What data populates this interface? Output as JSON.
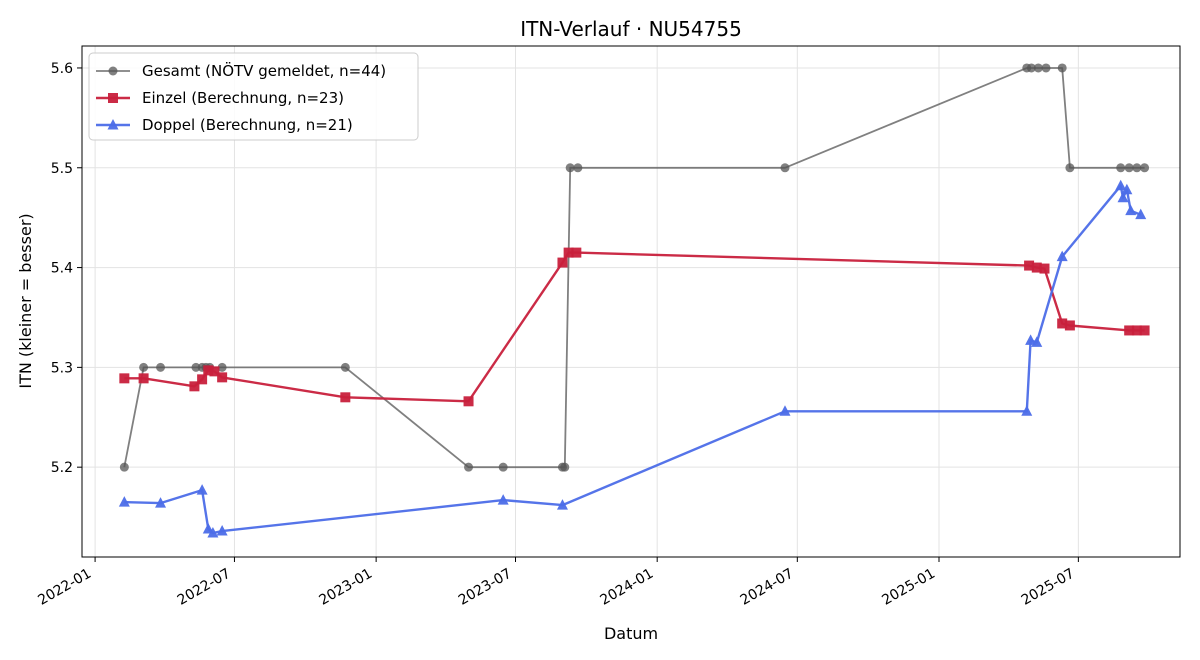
{
  "chart_data": {
    "type": "line",
    "title": "ITN-Verlauf · NU54755",
    "xlabel": "Datum",
    "ylabel": "ITN  (kleiner = besser)",
    "x_axis_type": "date",
    "xlim": [
      "2021-12-15",
      "2025-11-10"
    ],
    "ylim": [
      5.11,
      5.622
    ],
    "x_ticks": [
      "2022-01-01",
      "2022-07-01",
      "2023-01-01",
      "2023-07-01",
      "2024-01-01",
      "2024-07-01",
      "2025-01-01",
      "2025-07-01"
    ],
    "x_tick_labels": [
      "2022-01",
      "2022-07",
      "2023-01",
      "2023-07",
      "2024-01",
      "2024-07",
      "2025-01",
      "2025-07"
    ],
    "y_ticks": [
      5.2,
      5.3,
      5.4,
      5.5,
      5.6
    ],
    "y_tick_labels": [
      "5.2",
      "5.3",
      "5.4",
      "5.5",
      "5.6"
    ],
    "grid": true,
    "legend_position": "top-left",
    "series": [
      {
        "name": "Gesamt (NÖTV gemeldet, n=44)",
        "color": "#555555",
        "marker": "circle",
        "points": [
          [
            "2022-02-08",
            5.2
          ],
          [
            "2022-03-05",
            5.3
          ],
          [
            "2022-03-27",
            5.3
          ],
          [
            "2022-05-12",
            5.3
          ],
          [
            "2022-05-20",
            5.3
          ],
          [
            "2022-05-25",
            5.3
          ],
          [
            "2022-05-30",
            5.3
          ],
          [
            "2022-06-15",
            5.3
          ],
          [
            "2022-11-22",
            5.3
          ],
          [
            "2023-05-01",
            5.2
          ],
          [
            "2023-06-15",
            5.2
          ],
          [
            "2023-08-31",
            5.2
          ],
          [
            "2023-09-03",
            5.2
          ],
          [
            "2023-09-10",
            5.5
          ],
          [
            "2023-09-20",
            5.5
          ],
          [
            "2024-06-15",
            5.5
          ],
          [
            "2025-04-25",
            5.6
          ],
          [
            "2025-05-01",
            5.6
          ],
          [
            "2025-05-10",
            5.6
          ],
          [
            "2025-05-20",
            5.6
          ],
          [
            "2025-06-10",
            5.6
          ],
          [
            "2025-06-20",
            5.5
          ],
          [
            "2025-08-25",
            5.5
          ],
          [
            "2025-09-05",
            5.5
          ],
          [
            "2025-09-15",
            5.5
          ],
          [
            "2025-09-25",
            5.5
          ]
        ]
      },
      {
        "name": "Einzel (Berechnung, n=23)",
        "color": "#c8203c",
        "marker": "square",
        "points": [
          [
            "2022-02-08",
            5.289
          ],
          [
            "2022-03-05",
            5.289
          ],
          [
            "2022-05-10",
            5.281
          ],
          [
            "2022-05-20",
            5.288
          ],
          [
            "2022-05-28",
            5.297
          ],
          [
            "2022-06-05",
            5.296
          ],
          [
            "2022-06-15",
            5.29
          ],
          [
            "2022-11-22",
            5.27
          ],
          [
            "2023-05-01",
            5.266
          ],
          [
            "2023-08-31",
            5.405
          ],
          [
            "2023-09-08",
            5.415
          ],
          [
            "2023-09-18",
            5.415
          ],
          [
            "2025-04-28",
            5.402
          ],
          [
            "2025-05-08",
            5.4
          ],
          [
            "2025-05-18",
            5.399
          ],
          [
            "2025-06-10",
            5.344
          ],
          [
            "2025-06-20",
            5.342
          ],
          [
            "2025-09-05",
            5.337
          ],
          [
            "2025-09-15",
            5.337
          ],
          [
            "2025-09-25",
            5.337
          ]
        ]
      },
      {
        "name": "Doppel (Berechnung, n=21)",
        "color": "#4c6de8",
        "marker": "triangle",
        "points": [
          [
            "2022-02-08",
            5.165
          ],
          [
            "2022-03-27",
            5.164
          ],
          [
            "2022-05-20",
            5.177
          ],
          [
            "2022-05-28",
            5.138
          ],
          [
            "2022-06-03",
            5.134
          ],
          [
            "2022-06-15",
            5.136
          ],
          [
            "2023-06-15",
            5.167
          ],
          [
            "2023-08-31",
            5.162
          ],
          [
            "2024-06-15",
            5.256
          ],
          [
            "2025-04-25",
            5.256
          ],
          [
            "2025-04-30",
            5.327
          ],
          [
            "2025-05-08",
            5.325
          ],
          [
            "2025-06-10",
            5.411
          ],
          [
            "2025-08-25",
            5.482
          ],
          [
            "2025-08-28",
            5.47
          ],
          [
            "2025-09-02",
            5.478
          ],
          [
            "2025-09-07",
            5.457
          ],
          [
            "2025-09-20",
            5.453
          ]
        ]
      }
    ]
  }
}
